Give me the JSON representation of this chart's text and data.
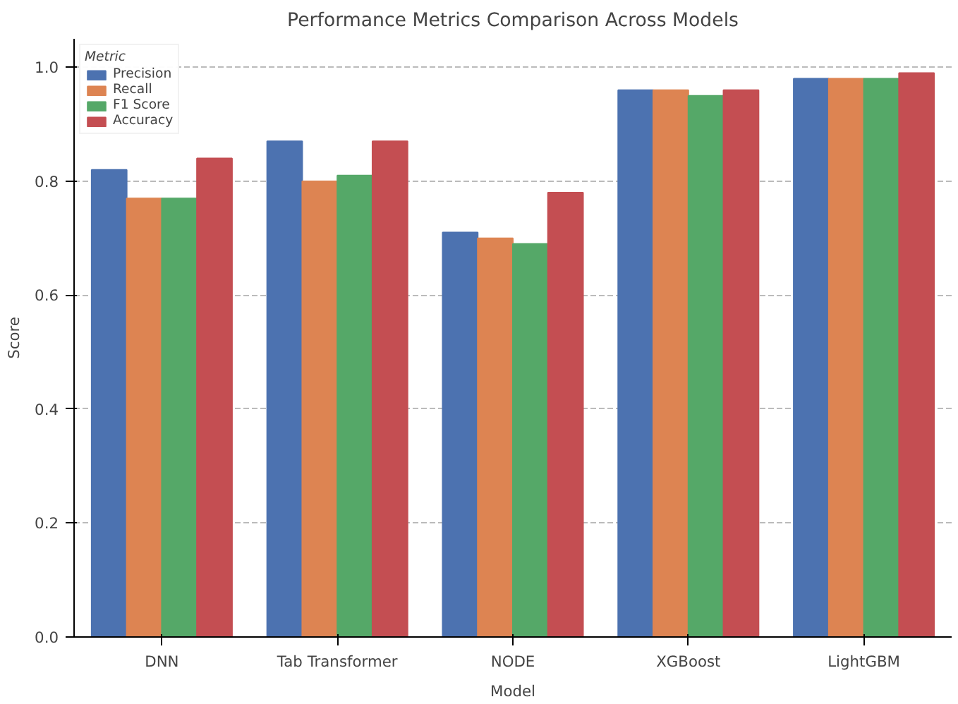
{
  "chart_data": {
    "type": "bar",
    "title": "Performance Metrics Comparison Across Models",
    "xlabel": "Model",
    "ylabel": "Score",
    "legend_title": "Metric",
    "categories": [
      "DNN",
      "Tab Transformer",
      "NODE",
      "XGBoost",
      "LightGBM"
    ],
    "series": [
      {
        "name": "Precision",
        "color": "#4c72b0",
        "values": [
          0.82,
          0.87,
          0.71,
          0.96,
          0.98
        ]
      },
      {
        "name": "Recall",
        "color": "#dd8452",
        "values": [
          0.77,
          0.8,
          0.7,
          0.96,
          0.98
        ]
      },
      {
        "name": "F1 Score",
        "color": "#55a868",
        "values": [
          0.77,
          0.81,
          0.69,
          0.95,
          0.98
        ]
      },
      {
        "name": "Accuracy",
        "color": "#c44e52",
        "values": [
          0.84,
          0.87,
          0.78,
          0.96,
          0.99
        ]
      }
    ],
    "ylim": [
      0,
      1.05
    ],
    "yticks": [
      {
        "value": 0,
        "label": "0.0"
      },
      {
        "value": 0.2,
        "label": "0.2"
      },
      {
        "value": 0.4,
        "label": "0.4"
      },
      {
        "value": 0.6,
        "label": "0.6"
      },
      {
        "value": 0.8,
        "label": "0.8"
      },
      {
        "value": 1.0,
        "label": "1.0"
      }
    ],
    "grid": "y",
    "legend": "top left"
  }
}
